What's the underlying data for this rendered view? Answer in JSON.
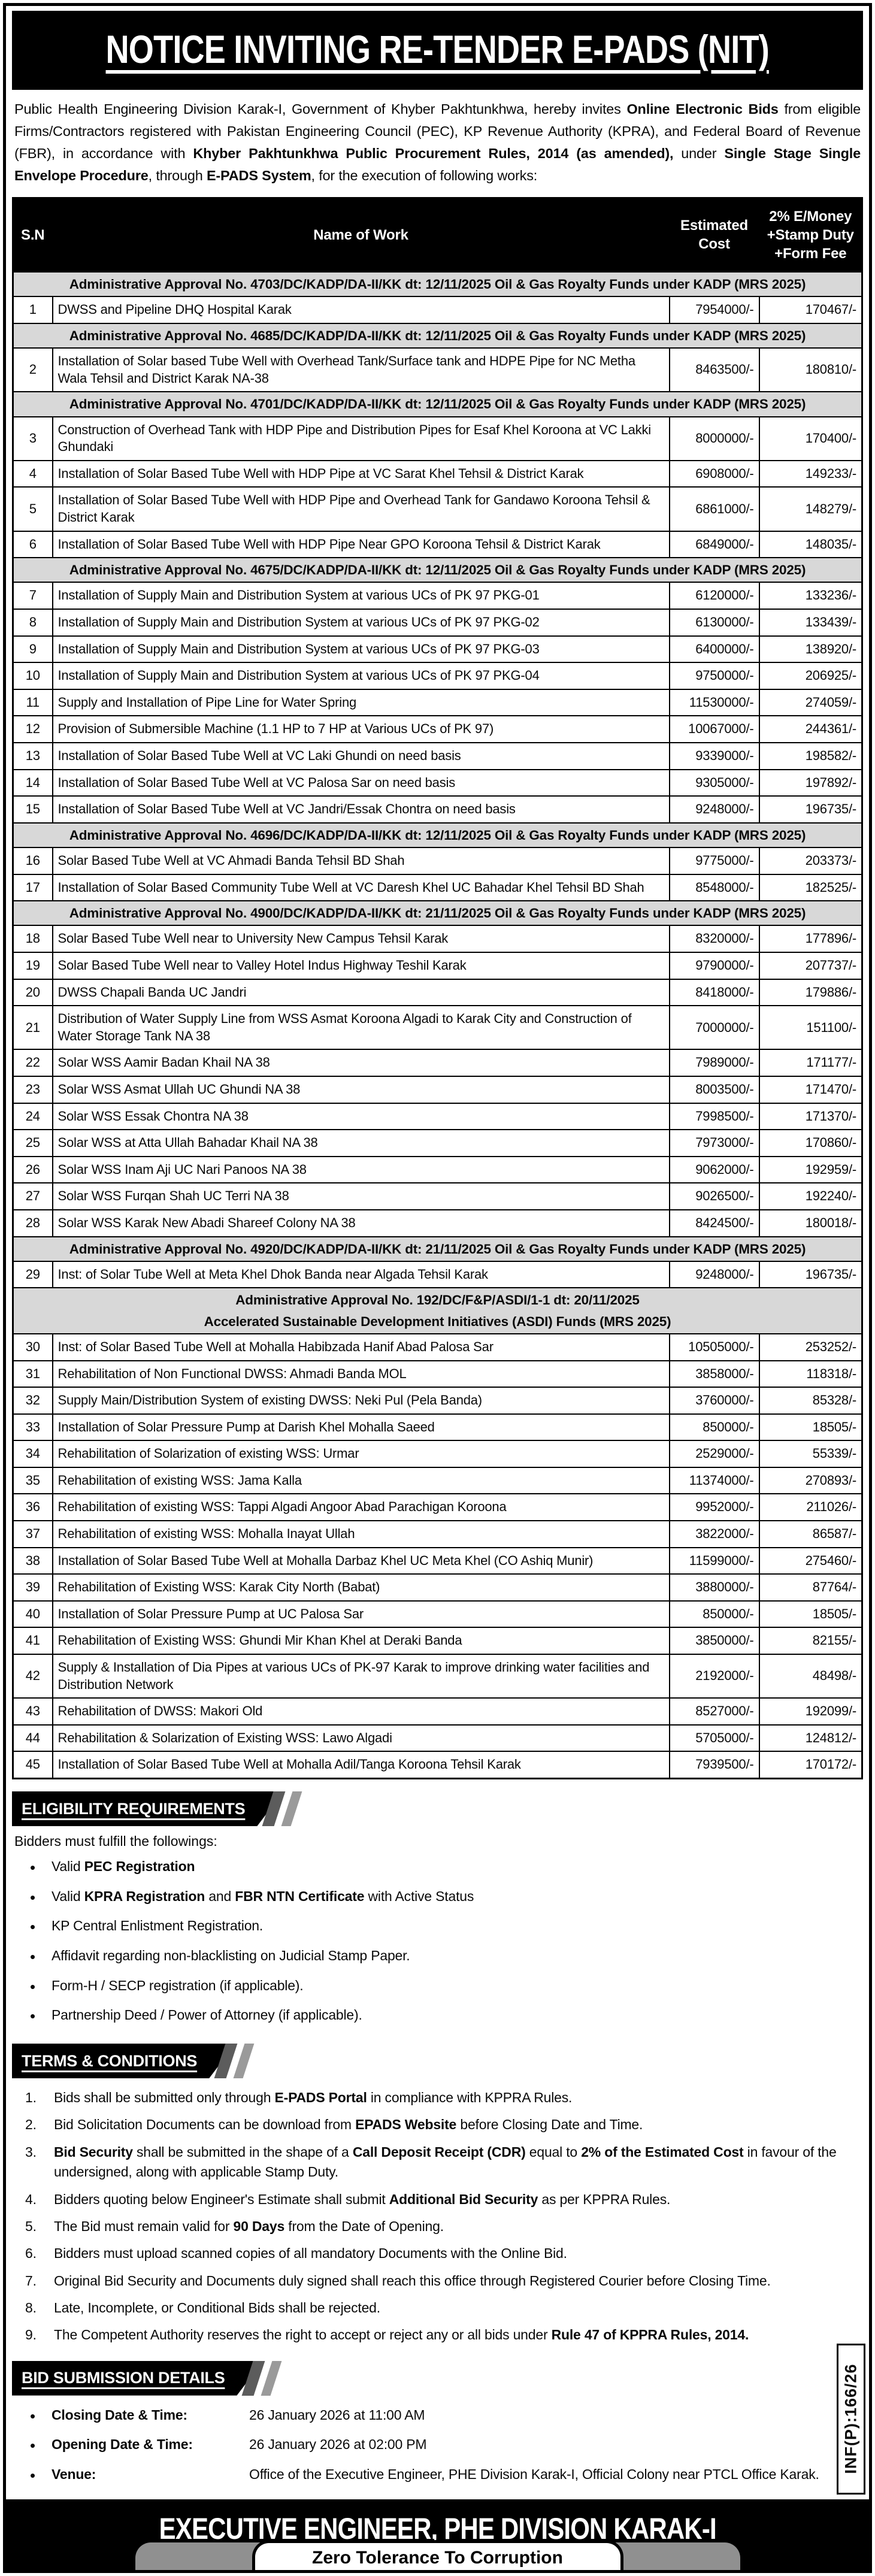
{
  "colors": {
    "section_row_bg": "#d8d8d8",
    "accent_gray": "#909090",
    "banner_bg": "#000000"
  },
  "title": "NOTICE INVITING RE-TENDER E-PADS (NIT)",
  "intro": "Public Health Engineering Division Karak-I, Government of Khyber Pakhtunkhwa, hereby invites **Online Electronic Bids** from eligible Firms/Contractors registered with Pakistan Engineering Council (PEC), KP Revenue Authority (KPRA), and Federal Board of Revenue (FBR), in accordance with **Khyber Pakhtunkhwa Public Procurement Rules, 2014 (as amended),** under **Single Stage Single Envelope Procedure**, through **E-PADS System**, for the execution of following works:",
  "table": {
    "headers": {
      "sn": "S.N",
      "name": "Name of Work",
      "cost": "Estimated\nCost",
      "fee": "2% E/Money\n+Stamp Duty\n+Form Fee"
    },
    "rows": [
      {
        "s": "Administrative Approval No. 4703/DC/KADP/DA-II/KK dt: 12/11/2025 Oil & Gas Royalty Funds under KADP (MRS 2025)"
      },
      {
        "n": "1",
        "w": "DWSS and Pipeline DHQ Hospital Karak",
        "c": "7954000/-",
        "f": "170467/-"
      },
      {
        "s": "Administrative Approval No. 4685/DC/KADP/DA-II/KK dt: 12/11/2025 Oil & Gas Royalty Funds under KADP (MRS 2025)"
      },
      {
        "n": "2",
        "w": "Installation of Solar based Tube Well with Overhead Tank/Surface tank and HDPE Pipe for NC Metha Wala Tehsil and District Karak NA-38",
        "c": "8463500/-",
        "f": "180810/-"
      },
      {
        "s": "Administrative Approval No. 4701/DC/KADP/DA-II/KK dt: 12/11/2025 Oil & Gas Royalty Funds under KADP (MRS 2025)"
      },
      {
        "n": "3",
        "w": "Construction of Overhead Tank with HDP Pipe and Distribution Pipes for Esaf Khel Koroona at VC Lakki Ghundaki",
        "c": "8000000/-",
        "f": "170400/-"
      },
      {
        "n": "4",
        "w": "Installation of Solar Based Tube Well with HDP Pipe at VC Sarat Khel Tehsil & District Karak",
        "c": "6908000/-",
        "f": "149233/-"
      },
      {
        "n": "5",
        "w": "Installation of Solar Based Tube Well with HDP Pipe and Overhead Tank for Gandawo Koroona Tehsil & District Karak",
        "c": "6861000/-",
        "f": "148279/-"
      },
      {
        "n": "6",
        "w": "Installation of Solar Based Tube Well with HDP Pipe Near GPO Koroona Tehsil & District Karak",
        "c": "6849000/-",
        "f": "148035/-"
      },
      {
        "s": "Administrative Approval No. 4675/DC/KADP/DA-II/KK dt: 12/11/2025 Oil & Gas Royalty Funds under KADP (MRS 2025)"
      },
      {
        "n": "7",
        "w": "Installation of Supply Main and Distribution System at various UCs of PK 97 PKG-01",
        "c": "6120000/-",
        "f": "133236/-"
      },
      {
        "n": "8",
        "w": "Installation of Supply Main and Distribution System at various UCs of PK 97 PKG-02",
        "c": "6130000/-",
        "f": "133439/-"
      },
      {
        "n": "9",
        "w": "Installation of Supply Main and Distribution System at various UCs of PK 97 PKG-03",
        "c": "6400000/-",
        "f": "138920/-"
      },
      {
        "n": "10",
        "w": "Installation of Supply Main and Distribution System at various UCs of PK 97 PKG-04",
        "c": "9750000/-",
        "f": "206925/-"
      },
      {
        "n": "11",
        "w": "Supply and Installation of Pipe Line for Water Spring",
        "c": "11530000/-",
        "f": "274059/-"
      },
      {
        "n": "12",
        "w": "Provision of Submersible Machine (1.1 HP to 7 HP at Various UCs of PK 97)",
        "c": "10067000/-",
        "f": "244361/-"
      },
      {
        "n": "13",
        "w": "Installation of Solar Based Tube Well at VC Laki Ghundi on need basis",
        "c": "9339000/-",
        "f": "198582/-"
      },
      {
        "n": "14",
        "w": "Installation of Solar Based Tube Well at VC Palosa Sar on need basis",
        "c": "9305000/-",
        "f": "197892/-"
      },
      {
        "n": "15",
        "w": "Installation of Solar Based Tube Well at VC Jandri/Essak Chontra on need basis",
        "c": "9248000/-",
        "f": "196735/-"
      },
      {
        "s": "Administrative Approval No. 4696/DC/KADP/DA-II/KK dt: 12/11/2025 Oil & Gas Royalty Funds under KADP (MRS 2025)"
      },
      {
        "n": "16",
        "w": "Solar Based Tube Well at VC Ahmadi Banda Tehsil BD Shah",
        "c": "9775000/-",
        "f": "203373/-"
      },
      {
        "n": "17",
        "w": "Installation of Solar Based Community Tube Well at VC Daresh Khel UC Bahadar Khel Tehsil BD Shah",
        "c": "8548000/-",
        "f": "182525/-"
      },
      {
        "s": "Administrative Approval No. 4900/DC/KADP/DA-II/KK dt: 21/11/2025 Oil & Gas Royalty Funds under KADP (MRS 2025)"
      },
      {
        "n": "18",
        "w": "Solar Based Tube Well near to University New Campus Tehsil Karak",
        "c": "8320000/-",
        "f": "177896/-"
      },
      {
        "n": "19",
        "w": "Solar Based Tube Well near to Valley Hotel Indus Highway Teshil Karak",
        "c": "9790000/-",
        "f": "207737/-"
      },
      {
        "n": "20",
        "w": "DWSS Chapali Banda UC Jandri",
        "c": "8418000/-",
        "f": "179886/-"
      },
      {
        "n": "21",
        "w": "Distribution of Water Supply Line from WSS Asmat Koroona Algadi to Karak City and Construction of Water Storage Tank NA 38",
        "c": "7000000/-",
        "f": "151100/-"
      },
      {
        "n": "22",
        "w": "Solar WSS Aamir Badan Khail NA 38",
        "c": "7989000/-",
        "f": "171177/-"
      },
      {
        "n": "23",
        "w": "Solar WSS Asmat Ullah UC Ghundi NA 38",
        "c": "8003500/-",
        "f": "171470/-"
      },
      {
        "n": "24",
        "w": "Solar WSS Essak Chontra NA 38",
        "c": "7998500/-",
        "f": "171370/-"
      },
      {
        "n": "25",
        "w": "Solar WSS at Atta Ullah Bahadar Khail NA 38",
        "c": "7973000/-",
        "f": "170860/-"
      },
      {
        "n": "26",
        "w": "Solar WSS Inam Aji UC Nari Panoos NA 38",
        "c": "9062000/-",
        "f": "192959/-"
      },
      {
        "n": "27",
        "w": "Solar WSS Furqan Shah UC Terri NA 38",
        "c": "9026500/-",
        "f": "192240/-"
      },
      {
        "n": "28",
        "w": "Solar WSS Karak New Abadi Shareef Colony NA 38",
        "c": "8424500/-",
        "f": "180018/-"
      },
      {
        "s": "Administrative Approval No. 4920/DC/KADP/DA-II/KK dt: 21/11/2025 Oil & Gas Royalty Funds under KADP (MRS 2025)"
      },
      {
        "n": "29",
        "w": "Inst: of Solar Tube Well at Meta Khel Dhok Banda near Algada Tehsil Karak",
        "c": "9248000/-",
        "f": "196735/-"
      },
      {
        "s": "Administrative Approval No. 192/DC/F&P/ASDI/1-1 dt: 20/11/2025",
        "s2": "Accelerated Sustainable Development Initiatives (ASDI) Funds (MRS 2025)"
      },
      {
        "n": "30",
        "w": "Inst: of Solar Based Tube Well at Mohalla Habibzada Hanif Abad Palosa Sar",
        "c": "10505000/-",
        "f": "253252/-"
      },
      {
        "n": "31",
        "w": "Rehabilitation of Non Functional DWSS: Ahmadi Banda MOL",
        "c": "3858000/-",
        "f": "118318/-"
      },
      {
        "n": "32",
        "w": "Supply Main/Distribution System of existing DWSS: Neki Pul (Pela Banda)",
        "c": "3760000/-",
        "f": "85328/-"
      },
      {
        "n": "33",
        "w": "Installation of Solar Pressure Pump at Darish Khel Mohalla Saeed",
        "c": "850000/-",
        "f": "18505/-"
      },
      {
        "n": "34",
        "w": "Rehabilitation of Solarization of existing WSS: Urmar",
        "c": "2529000/-",
        "f": "55339/-"
      },
      {
        "n": "35",
        "w": "Rehabilitation of existing WSS: Jama Kalla",
        "c": "11374000/-",
        "f": "270893/-"
      },
      {
        "n": "36",
        "w": "Rehabilitation of existing WSS: Tappi Algadi Angoor Abad Parachigan Koroona",
        "c": "9952000/-",
        "f": "211026/-"
      },
      {
        "n": "37",
        "w": "Rehabilitation of existing WSS: Mohalla Inayat Ullah",
        "c": "3822000/-",
        "f": "86587/-"
      },
      {
        "n": "38",
        "w": "Installation of Solar Based Tube Well at Mohalla Darbaz Khel UC Meta Khel (CO Ashiq Munir)",
        "c": "11599000/-",
        "f": "275460/-"
      },
      {
        "n": "39",
        "w": "Rehabilitation of Existing WSS: Karak City North (Babat)",
        "c": "3880000/-",
        "f": "87764/-"
      },
      {
        "n": "40",
        "w": "Installation of Solar Pressure Pump at UC Palosa Sar",
        "c": "850000/-",
        "f": "18505/-"
      },
      {
        "n": "41",
        "w": "Rehabilitation of Existing WSS: Ghundi Mir Khan Khel at Deraki Banda",
        "c": "3850000/-",
        "f": "82155/-"
      },
      {
        "n": "42",
        "w": "Supply & Installation of Dia Pipes at various UCs of PK-97 Karak to improve drinking water facilities and Distribution Network",
        "c": "2192000/-",
        "f": "48498/-"
      },
      {
        "n": "43",
        "w": "Rehabilitation of DWSS: Makori Old",
        "c": "8527000/-",
        "f": "192099/-"
      },
      {
        "n": "44",
        "w": "Rehabilitation & Solarization of Existing WSS: Lawo Algadi",
        "c": "5705000/-",
        "f": "124812/-"
      },
      {
        "n": "45",
        "w": "Installation of Solar Based Tube Well at Mohalla Adil/Tanga Koroona Tehsil Karak",
        "c": "7939500/-",
        "f": "170172/-"
      }
    ]
  },
  "eligibility": {
    "heading": "ELIGIBILITY REQUIREMENTS",
    "lead": "Bidders must fulfill the followings:",
    "items": [
      "Valid **PEC Registration**",
      "Valid **KPRA Registration** and **FBR NTN Certificate** with Active Status",
      "KP Central Enlistment Registration.",
      "Affidavit regarding non-blacklisting on Judicial Stamp Paper.",
      "Form-H / SECP registration (if applicable).",
      "Partnership Deed / Power of Attorney (if applicable)."
    ]
  },
  "terms": {
    "heading": "TERMS & CONDITIONS",
    "items": [
      "Bids shall be submitted only through **E-PADS Portal** in compliance with KPPRA Rules.",
      "Bid Solicitation Documents can be download from **EPADS Website** before Closing Date and Time.",
      "**Bid Security** shall be submitted in the shape of a **Call Deposit Receipt (CDR)** equal to **2% of the Estimated Cost** in favour of the undersigned, along with applicable Stamp Duty.",
      "Bidders quoting below Engineer's Estimate shall submit **Additional Bid Security** as per KPPRA Rules.",
      "The Bid must remain valid for **90 Days** from the Date of Opening.",
      "Bidders must upload scanned copies of all mandatory Documents with the Online Bid.",
      "Original Bid Security and Documents duly signed shall reach this office through Registered Courier before Closing Time.",
      "Late, Incomplete, or Conditional Bids shall be rejected.",
      "The Competent Authority reserves the right to accept or reject any or all bids under **Rule 47 of KPPRA Rules, 2014.**"
    ]
  },
  "bid_submission": {
    "heading": "BID SUBMISSION DETAILS",
    "items": [
      {
        "label": "Closing Date & Time:",
        "value": "26 January 2026 at 11:00 AM"
      },
      {
        "label": "Opening Date & Time:",
        "value": "26 January 2026 at 02:00 PM"
      },
      {
        "label": "Venue:",
        "value": "Office of the Executive Engineer, PHE Division Karak-I, Official Colony near PTCL Office Karak."
      }
    ]
  },
  "publication_ref": "INF(P):166/26",
  "footer": {
    "title": "EXECUTIVE ENGINEER, PHE DIVISION KARAK-I",
    "tagline": "Zero Tolerance To Corruption"
  }
}
